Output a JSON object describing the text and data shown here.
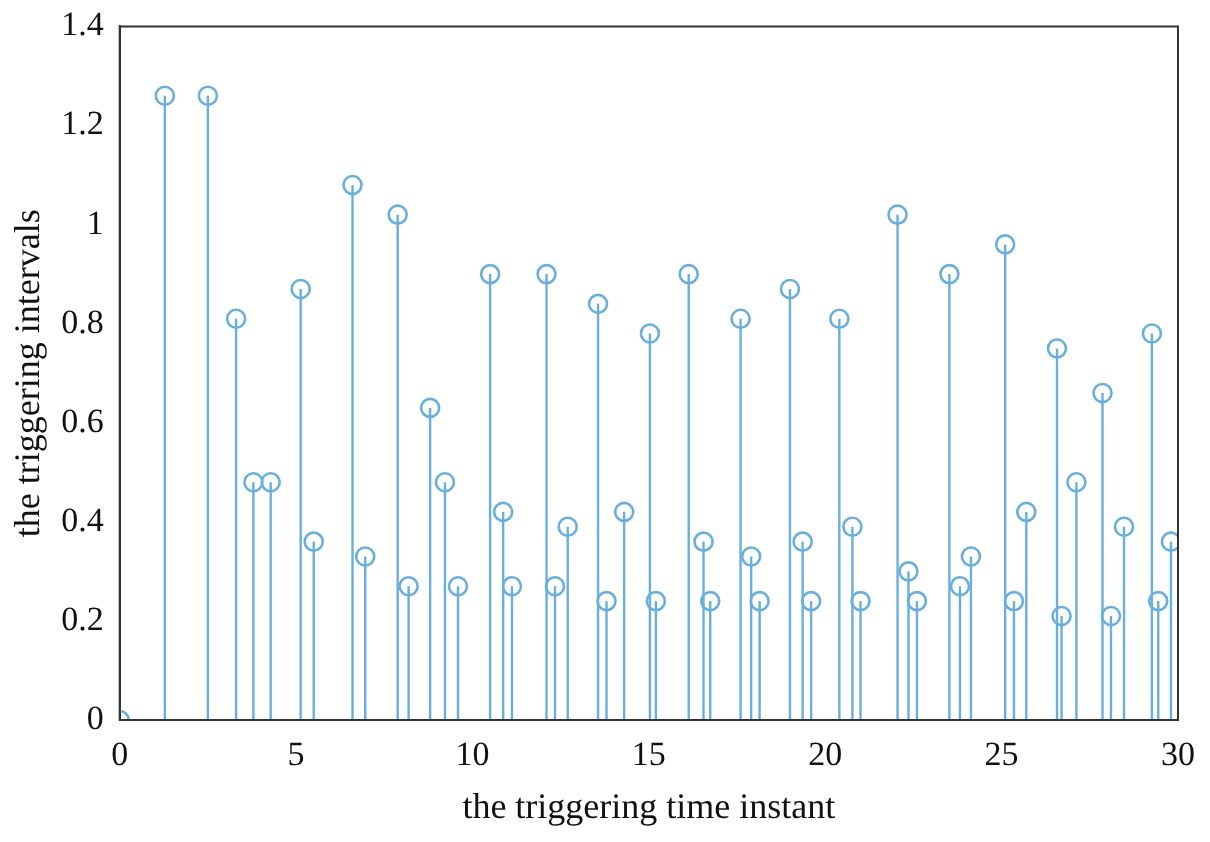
{
  "chart_data": {
    "type": "lollipop",
    "xlabel": "the triggering time instant",
    "ylabel": "the triggering intervals",
    "x": [
      0,
      1.28,
      2.5,
      3.3,
      3.79,
      4.28,
      5.13,
      5.5,
      6.6,
      6.96,
      7.88,
      8.19,
      8.8,
      9.22,
      9.59,
      10.5,
      10.87,
      11.12,
      12.1,
      12.34,
      12.7,
      13.56,
      13.8,
      14.3,
      15.03,
      15.2,
      16.13,
      16.55,
      16.74,
      17.6,
      17.9,
      18.14,
      19.0,
      19.36,
      19.6,
      20.4,
      20.77,
      21.0,
      22.05,
      22.36,
      22.6,
      23.52,
      23.82,
      24.13,
      25.1,
      25.35,
      25.7,
      26.57,
      26.7,
      27.12,
      27.86,
      28.1,
      28.47,
      29.26,
      29.44,
      29.8
    ],
    "values": [
      0,
      1.26,
      1.26,
      0.81,
      0.48,
      0.48,
      0.87,
      0.36,
      1.08,
      0.33,
      1.02,
      0.27,
      0.63,
      0.48,
      0.27,
      0.9,
      0.42,
      0.27,
      0.9,
      0.27,
      0.39,
      0.84,
      0.24,
      0.42,
      0.78,
      0.24,
      0.9,
      0.36,
      0.24,
      0.81,
      0.33,
      0.24,
      0.87,
      0.36,
      0.24,
      0.81,
      0.39,
      0.24,
      1.02,
      0.3,
      0.24,
      0.9,
      0.27,
      0.33,
      0.96,
      0.24,
      0.42,
      0.75,
      0.21,
      0.48,
      0.66,
      0.21,
      0.39,
      0.78,
      0.24,
      0.36
    ],
    "color": "#6aafdc",
    "marker": "circle",
    "xlim": [
      0,
      30
    ],
    "xticks": [
      0,
      5,
      10,
      15,
      20,
      25,
      30
    ],
    "ylim": [
      0,
      1.4
    ],
    "yticks": [
      0,
      0.2,
      0.4,
      0.6,
      0.8,
      1,
      1.2,
      1.4
    ],
    "grid": false,
    "legend": false
  }
}
